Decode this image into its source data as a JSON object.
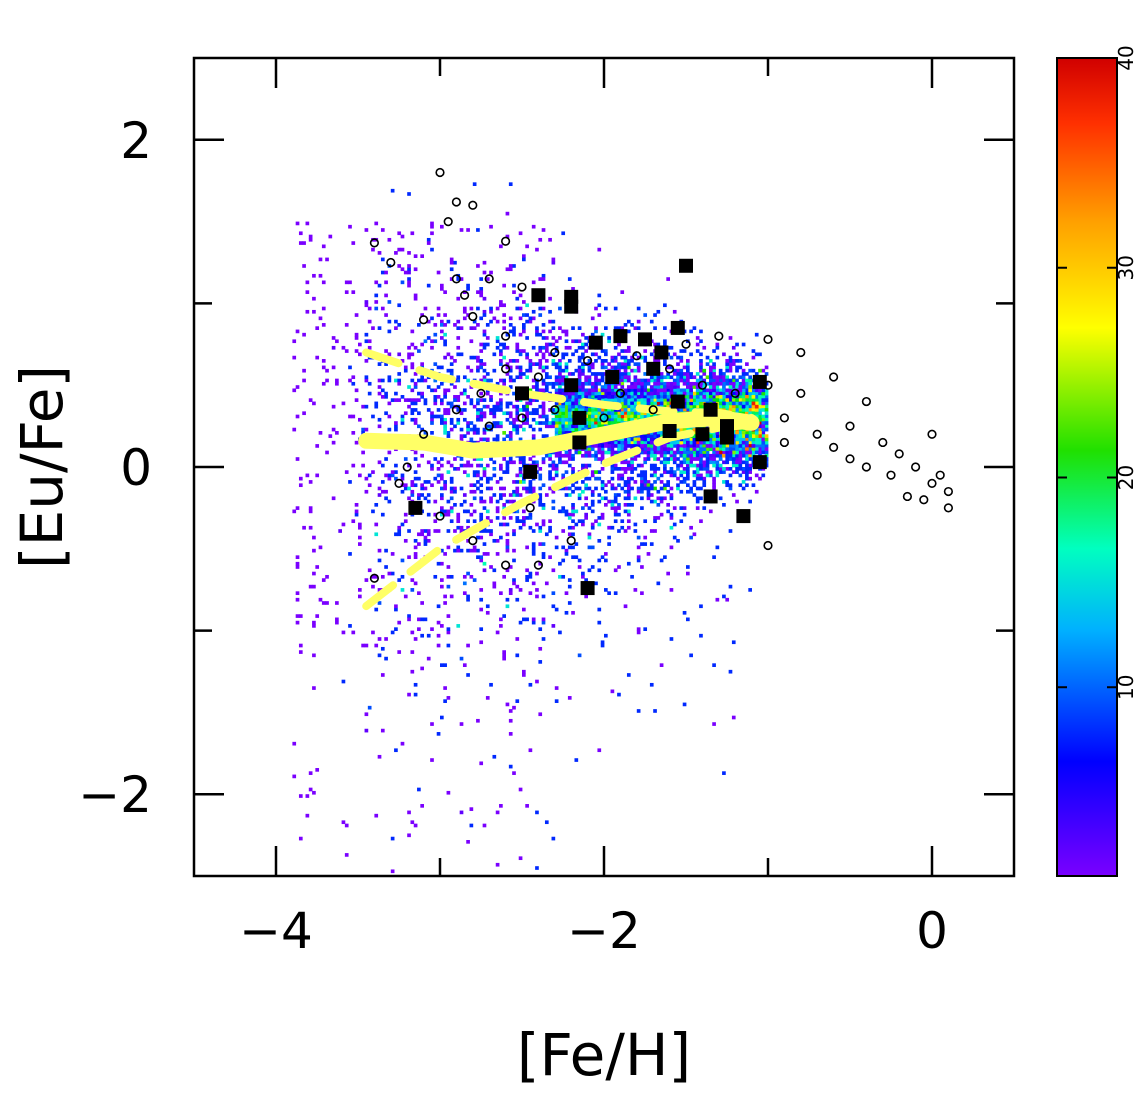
{
  "chart_data": {
    "type": "scatter",
    "xlabel": "[Fe/H]",
    "ylabel": "[Eu/Fe]",
    "xlim": [
      -4.5,
      0.5
    ],
    "ylim": [
      -2.5,
      2.5
    ],
    "x_ticks": [
      -4,
      -2,
      0
    ],
    "x_tick_labels": [
      "−4",
      "−2",
      "0"
    ],
    "y_ticks": [
      -2,
      0,
      2
    ],
    "y_tick_labels": [
      "−2",
      "0",
      "2"
    ],
    "grid": false,
    "colorbar": {
      "range": [
        1,
        40
      ],
      "ticks": [
        10,
        20,
        30,
        40
      ],
      "tick_labels": [
        "10",
        "20",
        "30",
        "40"
      ],
      "colors": [
        "#7a00ff",
        "#0000ff",
        "#00b0ff",
        "#00ffc0",
        "#00e000",
        "#ffff00",
        "#ffa000",
        "#ff3000",
        "#d00000"
      ]
    },
    "density_map": {
      "description_core_line": [
        {
          "x": -2.9,
          "y": 0.18
        },
        {
          "x": -2.5,
          "y": 0.22
        },
        {
          "x": -2.0,
          "y": 0.28
        },
        {
          "x": -1.5,
          "y": 0.3
        },
        {
          "x": -1.1,
          "y": 0.28
        }
      ]
    },
    "series": [
      {
        "marker": "open-circle",
        "points": [
          [
            -3.0,
            1.8
          ],
          [
            -2.9,
            1.62
          ],
          [
            -2.95,
            1.5
          ],
          [
            -2.8,
            1.6
          ],
          [
            -3.4,
            1.37
          ],
          [
            -3.3,
            1.25
          ],
          [
            -2.6,
            1.38
          ],
          [
            -2.9,
            1.15
          ],
          [
            -2.7,
            1.15
          ],
          [
            -2.85,
            1.05
          ],
          [
            -2.5,
            1.1
          ],
          [
            -3.1,
            0.9
          ],
          [
            -2.8,
            0.92
          ],
          [
            -2.6,
            0.8
          ],
          [
            -2.3,
            0.7
          ],
          [
            -2.1,
            0.65
          ],
          [
            -1.8,
            0.68
          ],
          [
            -1.5,
            0.75
          ],
          [
            -1.3,
            0.8
          ],
          [
            -1.0,
            0.78
          ],
          [
            -0.8,
            0.7
          ],
          [
            -0.6,
            0.55
          ],
          [
            -0.4,
            0.4
          ],
          [
            -0.5,
            0.25
          ],
          [
            -0.6,
            0.12
          ],
          [
            -0.3,
            0.15
          ],
          [
            -0.2,
            0.08
          ],
          [
            -0.1,
            0.0
          ],
          [
            0.0,
            -0.1
          ],
          [
            0.1,
            -0.15
          ],
          [
            -0.05,
            -0.2
          ],
          [
            0.05,
            -0.05
          ],
          [
            -0.15,
            -0.18
          ],
          [
            -0.25,
            -0.05
          ],
          [
            -0.4,
            0.0
          ],
          [
            -0.5,
            0.05
          ],
          [
            -0.7,
            0.2
          ],
          [
            -0.9,
            0.3
          ],
          [
            -0.8,
            0.45
          ],
          [
            -1.0,
            0.5
          ],
          [
            -1.2,
            0.45
          ],
          [
            -1.4,
            0.5
          ],
          [
            -1.6,
            0.6
          ],
          [
            -1.9,
            0.45
          ],
          [
            -2.2,
            0.5
          ],
          [
            -2.4,
            0.55
          ],
          [
            -2.6,
            0.6
          ],
          [
            -2.75,
            0.45
          ],
          [
            -2.9,
            0.35
          ],
          [
            -3.1,
            0.2
          ],
          [
            -3.2,
            0.0
          ],
          [
            -3.25,
            -0.1
          ],
          [
            -3.0,
            -0.3
          ],
          [
            -2.8,
            -0.45
          ],
          [
            -2.6,
            -0.6
          ],
          [
            -2.4,
            -0.6
          ],
          [
            -2.2,
            -0.45
          ],
          [
            -1.0,
            -0.48
          ],
          [
            -1.7,
            0.35
          ],
          [
            -2.0,
            0.3
          ],
          [
            -2.3,
            0.35
          ],
          [
            -2.5,
            0.3
          ],
          [
            -2.7,
            0.25
          ],
          [
            -0.9,
            0.15
          ],
          [
            -0.7,
            -0.05
          ],
          [
            0.0,
            0.2
          ],
          [
            0.1,
            -0.25
          ],
          [
            -3.4,
            -0.68
          ],
          [
            -2.45,
            -0.25
          ]
        ]
      },
      {
        "marker": "filled-square",
        "points": [
          [
            -1.5,
            1.23
          ],
          [
            -2.4,
            1.05
          ],
          [
            -2.2,
            1.04
          ],
          [
            -2.2,
            0.98
          ],
          [
            -1.9,
            0.8
          ],
          [
            -1.75,
            0.78
          ],
          [
            -1.55,
            0.85
          ],
          [
            -2.05,
            0.76
          ],
          [
            -1.65,
            0.7
          ],
          [
            -1.95,
            0.55
          ],
          [
            -1.7,
            0.6
          ],
          [
            -2.2,
            0.5
          ],
          [
            -1.05,
            0.52
          ],
          [
            -1.55,
            0.4
          ],
          [
            -2.5,
            0.45
          ],
          [
            -2.15,
            0.3
          ],
          [
            -1.35,
            0.35
          ],
          [
            -1.25,
            0.25
          ],
          [
            -1.6,
            0.22
          ],
          [
            -1.4,
            0.2
          ],
          [
            -1.25,
            0.18
          ],
          [
            -2.15,
            0.15
          ],
          [
            -2.45,
            -0.03
          ],
          [
            -1.05,
            0.03
          ],
          [
            -3.15,
            -0.25
          ],
          [
            -1.35,
            -0.18
          ],
          [
            -1.15,
            -0.3
          ],
          [
            -2.1,
            -0.74
          ]
        ]
      }
    ],
    "lines": [
      {
        "style": "solid",
        "color": "#ffff66",
        "points": [
          [
            -3.45,
            0.16
          ],
          [
            -3.1,
            0.15
          ],
          [
            -2.8,
            0.1
          ],
          [
            -2.4,
            0.12
          ],
          [
            -2.0,
            0.2
          ],
          [
            -1.6,
            0.28
          ],
          [
            -1.3,
            0.3
          ],
          [
            -1.1,
            0.27
          ]
        ]
      },
      {
        "style": "dashed",
        "color": "#ffff66",
        "points": [
          [
            -3.45,
            0.7
          ],
          [
            -3.0,
            0.55
          ],
          [
            -2.5,
            0.45
          ],
          [
            -2.0,
            0.38
          ],
          [
            -1.6,
            0.34
          ],
          [
            -1.3,
            0.33
          ],
          [
            -1.1,
            0.3
          ]
        ]
      },
      {
        "style": "dashed",
        "color": "#ffff66",
        "points": [
          [
            -3.45,
            -0.85
          ],
          [
            -3.0,
            -0.5
          ],
          [
            -2.5,
            -0.22
          ],
          [
            -2.0,
            0.02
          ],
          [
            -1.6,
            0.18
          ],
          [
            -1.3,
            0.24
          ],
          [
            -1.1,
            0.26
          ]
        ]
      }
    ]
  }
}
